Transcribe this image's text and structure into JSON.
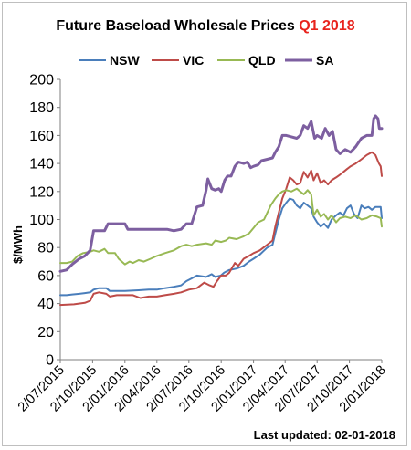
{
  "title": {
    "main": "Future Baseload Wholesale Prices",
    "highlight": "Q1 2018",
    "highlight_color": "#e8231d"
  },
  "footer": {
    "last_updated": "Last updated: 02-01-2018"
  },
  "chart_data": {
    "type": "line",
    "title": "Future Baseload Wholesale Prices Q1 2018",
    "xlabel": "",
    "ylabel": "$/MWh",
    "ylim": [
      0,
      200
    ],
    "y_ticks": [
      0,
      20,
      40,
      60,
      80,
      100,
      120,
      140,
      160,
      180,
      200
    ],
    "x_range": [
      "2015-07-02",
      "2018-01-02"
    ],
    "x_ticks": [
      "2/07/2015",
      "2/10/2015",
      "2/01/2016",
      "2/04/2016",
      "2/07/2016",
      "2/10/2016",
      "2/01/2017",
      "2/04/2017",
      "2/07/2017",
      "2/10/2017",
      "2/01/2018"
    ],
    "x_tick_dates": [
      "2015-07-02",
      "2015-10-02",
      "2016-01-02",
      "2016-04-02",
      "2016-07-02",
      "2016-10-02",
      "2017-01-02",
      "2017-04-02",
      "2017-07-02",
      "2017-10-02",
      "2018-01-02"
    ],
    "legend_position": "top",
    "grid": "none",
    "series": [
      {
        "name": "NSW",
        "color": "#4a7ebb",
        "width": 2,
        "points": [
          [
            "2015-07-02",
            46
          ],
          [
            "2015-07-20",
            46
          ],
          [
            "2015-08-05",
            46.5
          ],
          [
            "2015-08-25",
            47
          ],
          [
            "2015-09-10",
            47.5
          ],
          [
            "2015-09-25",
            48
          ],
          [
            "2015-10-05",
            50
          ],
          [
            "2015-10-20",
            51
          ],
          [
            "2015-11-10",
            51
          ],
          [
            "2015-11-20",
            49
          ],
          [
            "2016-01-02",
            49
          ],
          [
            "2016-02-10",
            49.5
          ],
          [
            "2016-03-10",
            50
          ],
          [
            "2016-04-02",
            50
          ],
          [
            "2016-04-25",
            51
          ],
          [
            "2016-05-20",
            52
          ],
          [
            "2016-06-10",
            53
          ],
          [
            "2016-06-25",
            56
          ],
          [
            "2016-07-10",
            58
          ],
          [
            "2016-07-25",
            60
          ],
          [
            "2016-08-20",
            59
          ],
          [
            "2016-09-05",
            61
          ],
          [
            "2016-09-15",
            59
          ],
          [
            "2016-10-01",
            60
          ],
          [
            "2016-10-10",
            62
          ],
          [
            "2016-10-25",
            64
          ],
          [
            "2016-11-15",
            65
          ],
          [
            "2016-12-05",
            67
          ],
          [
            "2016-12-20",
            70
          ],
          [
            "2017-01-02",
            72
          ],
          [
            "2017-01-20",
            75
          ],
          [
            "2017-02-10",
            80
          ],
          [
            "2017-02-25",
            82
          ],
          [
            "2017-03-05",
            90
          ],
          [
            "2017-03-15",
            100
          ],
          [
            "2017-03-25",
            108
          ],
          [
            "2017-04-05",
            112
          ],
          [
            "2017-04-15",
            115
          ],
          [
            "2017-04-25",
            114
          ],
          [
            "2017-05-05",
            110
          ],
          [
            "2017-05-15",
            108
          ],
          [
            "2017-05-25",
            112
          ],
          [
            "2017-06-05",
            110
          ],
          [
            "2017-06-15",
            108
          ],
          [
            "2017-06-22",
            102
          ],
          [
            "2017-07-02",
            98
          ],
          [
            "2017-07-12",
            95
          ],
          [
            "2017-07-22",
            97
          ],
          [
            "2017-08-02",
            94
          ],
          [
            "2017-08-12",
            100
          ],
          [
            "2017-08-25",
            103
          ],
          [
            "2017-09-05",
            105
          ],
          [
            "2017-09-15",
            103
          ],
          [
            "2017-09-25",
            108
          ],
          [
            "2017-10-05",
            110
          ],
          [
            "2017-10-15",
            104
          ],
          [
            "2017-10-25",
            101
          ],
          [
            "2017-11-05",
            110
          ],
          [
            "2017-11-15",
            108
          ],
          [
            "2017-11-25",
            109
          ],
          [
            "2017-12-05",
            107
          ],
          [
            "2017-12-15",
            109
          ],
          [
            "2017-12-30",
            109
          ],
          [
            "2018-01-02",
            101
          ]
        ]
      },
      {
        "name": "VIC",
        "color": "#be4b48",
        "width": 2,
        "points": [
          [
            "2015-07-02",
            39
          ],
          [
            "2015-08-10",
            39.5
          ],
          [
            "2015-09-10",
            40.5
          ],
          [
            "2015-09-25",
            42
          ],
          [
            "2015-10-05",
            47
          ],
          [
            "2015-10-20",
            48
          ],
          [
            "2015-11-10",
            47
          ],
          [
            "2015-11-20",
            45
          ],
          [
            "2015-12-10",
            46
          ],
          [
            "2016-01-02",
            46
          ],
          [
            "2016-01-25",
            46
          ],
          [
            "2016-02-15",
            44
          ],
          [
            "2016-03-10",
            45
          ],
          [
            "2016-04-02",
            45
          ],
          [
            "2016-04-25",
            46
          ],
          [
            "2016-05-20",
            47
          ],
          [
            "2016-06-10",
            48
          ],
          [
            "2016-07-02",
            50
          ],
          [
            "2016-07-25",
            51
          ],
          [
            "2016-08-15",
            55
          ],
          [
            "2016-08-30",
            53
          ],
          [
            "2016-09-10",
            52
          ],
          [
            "2016-09-20",
            56
          ],
          [
            "2016-10-02",
            60
          ],
          [
            "2016-10-15",
            60
          ],
          [
            "2016-10-25",
            62
          ],
          [
            "2016-11-10",
            69
          ],
          [
            "2016-11-20",
            67
          ],
          [
            "2016-12-05",
            72
          ],
          [
            "2016-12-20",
            74
          ],
          [
            "2017-01-02",
            76
          ],
          [
            "2017-01-20",
            78
          ],
          [
            "2017-02-10",
            82
          ],
          [
            "2017-02-25",
            85
          ],
          [
            "2017-03-05",
            95
          ],
          [
            "2017-03-15",
            105
          ],
          [
            "2017-03-25",
            115
          ],
          [
            "2017-04-05",
            122
          ],
          [
            "2017-04-15",
            130
          ],
          [
            "2017-04-25",
            128
          ],
          [
            "2017-05-05",
            125
          ],
          [
            "2017-05-15",
            126
          ],
          [
            "2017-05-25",
            134
          ],
          [
            "2017-06-05",
            130
          ],
          [
            "2017-06-15",
            135
          ],
          [
            "2017-06-22",
            128
          ],
          [
            "2017-07-02",
            133
          ],
          [
            "2017-07-12",
            126
          ],
          [
            "2017-07-22",
            128
          ],
          [
            "2017-08-02",
            125
          ],
          [
            "2017-08-12",
            128
          ],
          [
            "2017-08-25",
            130
          ],
          [
            "2017-09-05",
            132
          ],
          [
            "2017-09-15",
            134
          ],
          [
            "2017-09-25",
            136
          ],
          [
            "2017-10-05",
            138
          ],
          [
            "2017-10-20",
            140
          ],
          [
            "2017-11-05",
            143
          ],
          [
            "2017-11-20",
            146
          ],
          [
            "2017-12-05",
            148
          ],
          [
            "2017-12-15",
            146
          ],
          [
            "2017-12-25",
            140
          ],
          [
            "2017-12-30",
            138
          ],
          [
            "2018-01-02",
            131
          ]
        ]
      },
      {
        "name": "QLD",
        "color": "#98b954",
        "width": 2,
        "points": [
          [
            "2015-07-02",
            69
          ],
          [
            "2015-07-20",
            69
          ],
          [
            "2015-08-05",
            70
          ],
          [
            "2015-08-20",
            74
          ],
          [
            "2015-09-05",
            76
          ],
          [
            "2015-09-25",
            77
          ],
          [
            "2015-10-05",
            78
          ],
          [
            "2015-10-20",
            77
          ],
          [
            "2015-11-05",
            79
          ],
          [
            "2015-11-15",
            76
          ],
          [
            "2015-12-05",
            76
          ],
          [
            "2015-12-15",
            72
          ],
          [
            "2016-01-02",
            68
          ],
          [
            "2016-01-15",
            70
          ],
          [
            "2016-01-25",
            69
          ],
          [
            "2016-02-10",
            71
          ],
          [
            "2016-02-25",
            70
          ],
          [
            "2016-03-15",
            72
          ],
          [
            "2016-04-02",
            74
          ],
          [
            "2016-04-25",
            76
          ],
          [
            "2016-05-20",
            78
          ],
          [
            "2016-06-10",
            81
          ],
          [
            "2016-06-25",
            82
          ],
          [
            "2016-07-10",
            81
          ],
          [
            "2016-07-25",
            82
          ],
          [
            "2016-08-20",
            83
          ],
          [
            "2016-09-05",
            82
          ],
          [
            "2016-09-15",
            85
          ],
          [
            "2016-10-02",
            84
          ],
          [
            "2016-10-15",
            85
          ],
          [
            "2016-10-25",
            87
          ],
          [
            "2016-11-15",
            86
          ],
          [
            "2016-12-05",
            88
          ],
          [
            "2016-12-20",
            90
          ],
          [
            "2017-01-02",
            94
          ],
          [
            "2017-01-15",
            98
          ],
          [
            "2017-02-01",
            100
          ],
          [
            "2017-02-20",
            110
          ],
          [
            "2017-03-05",
            115
          ],
          [
            "2017-03-15",
            118
          ],
          [
            "2017-03-25",
            120
          ],
          [
            "2017-04-05",
            121
          ],
          [
            "2017-04-20",
            120
          ],
          [
            "2017-05-05",
            122
          ],
          [
            "2017-05-15",
            120
          ],
          [
            "2017-05-25",
            118
          ],
          [
            "2017-06-05",
            121
          ],
          [
            "2017-06-15",
            118
          ],
          [
            "2017-06-22",
            103
          ],
          [
            "2017-07-02",
            107
          ],
          [
            "2017-07-12",
            102
          ],
          [
            "2017-07-22",
            104
          ],
          [
            "2017-08-02",
            100
          ],
          [
            "2017-08-12",
            103
          ],
          [
            "2017-08-25",
            98
          ],
          [
            "2017-09-05",
            101
          ],
          [
            "2017-09-20",
            102
          ],
          [
            "2017-10-05",
            101
          ],
          [
            "2017-10-20",
            103
          ],
          [
            "2017-11-05",
            100
          ],
          [
            "2017-11-20",
            101
          ],
          [
            "2017-12-05",
            103
          ],
          [
            "2017-12-20",
            102
          ],
          [
            "2017-12-30",
            101
          ],
          [
            "2018-01-02",
            95
          ]
        ]
      },
      {
        "name": "SA",
        "color": "#7d5fa0",
        "width": 3,
        "points": [
          [
            "2015-07-02",
            63
          ],
          [
            "2015-07-20",
            64
          ],
          [
            "2015-08-05",
            68
          ],
          [
            "2015-08-25",
            72
          ],
          [
            "2015-09-10",
            74
          ],
          [
            "2015-09-25",
            78
          ],
          [
            "2015-10-05",
            92
          ],
          [
            "2015-10-20",
            92
          ],
          [
            "2015-11-05",
            92
          ],
          [
            "2015-11-15",
            97
          ],
          [
            "2015-12-10",
            97
          ],
          [
            "2016-01-02",
            97
          ],
          [
            "2016-01-10",
            93
          ],
          [
            "2016-02-10",
            93
          ],
          [
            "2016-03-10",
            93
          ],
          [
            "2016-04-02",
            93
          ],
          [
            "2016-05-01",
            93
          ],
          [
            "2016-05-20",
            92
          ],
          [
            "2016-06-10",
            93
          ],
          [
            "2016-06-25",
            97
          ],
          [
            "2016-07-10",
            97
          ],
          [
            "2016-07-25",
            109
          ],
          [
            "2016-08-10",
            110
          ],
          [
            "2016-08-20",
            121
          ],
          [
            "2016-08-25",
            129
          ],
          [
            "2016-09-05",
            122
          ],
          [
            "2016-09-15",
            121
          ],
          [
            "2016-09-25",
            122
          ],
          [
            "2016-10-02",
            120
          ],
          [
            "2016-10-12",
            128
          ],
          [
            "2016-10-20",
            131
          ],
          [
            "2016-10-30",
            131
          ],
          [
            "2016-11-10",
            138
          ],
          [
            "2016-11-20",
            141
          ],
          [
            "2016-12-05",
            140
          ],
          [
            "2016-12-15",
            141
          ],
          [
            "2016-12-25",
            137
          ],
          [
            "2017-01-02",
            138
          ],
          [
            "2017-01-15",
            139
          ],
          [
            "2017-01-25",
            142
          ],
          [
            "2017-02-10",
            143
          ],
          [
            "2017-02-25",
            144
          ],
          [
            "2017-03-05",
            148
          ],
          [
            "2017-03-15",
            152
          ],
          [
            "2017-03-25",
            160
          ],
          [
            "2017-04-05",
            160
          ],
          [
            "2017-04-20",
            159
          ],
          [
            "2017-05-05",
            158
          ],
          [
            "2017-05-15",
            160
          ],
          [
            "2017-05-25",
            167
          ],
          [
            "2017-06-05",
            165
          ],
          [
            "2017-06-15",
            170
          ],
          [
            "2017-06-25",
            158
          ],
          [
            "2017-07-02",
            160
          ],
          [
            "2017-07-15",
            158
          ],
          [
            "2017-07-25",
            165
          ],
          [
            "2017-08-05",
            160
          ],
          [
            "2017-08-15",
            163
          ],
          [
            "2017-08-25",
            150
          ],
          [
            "2017-09-05",
            147
          ],
          [
            "2017-09-20",
            150
          ],
          [
            "2017-10-05",
            148
          ],
          [
            "2017-10-20",
            152
          ],
          [
            "2017-11-05",
            158
          ],
          [
            "2017-11-20",
            160
          ],
          [
            "2017-12-05",
            160
          ],
          [
            "2017-12-10",
            172
          ],
          [
            "2017-12-15",
            174
          ],
          [
            "2017-12-22",
            172
          ],
          [
            "2017-12-26",
            165
          ],
          [
            "2018-01-02",
            165
          ]
        ]
      }
    ]
  }
}
